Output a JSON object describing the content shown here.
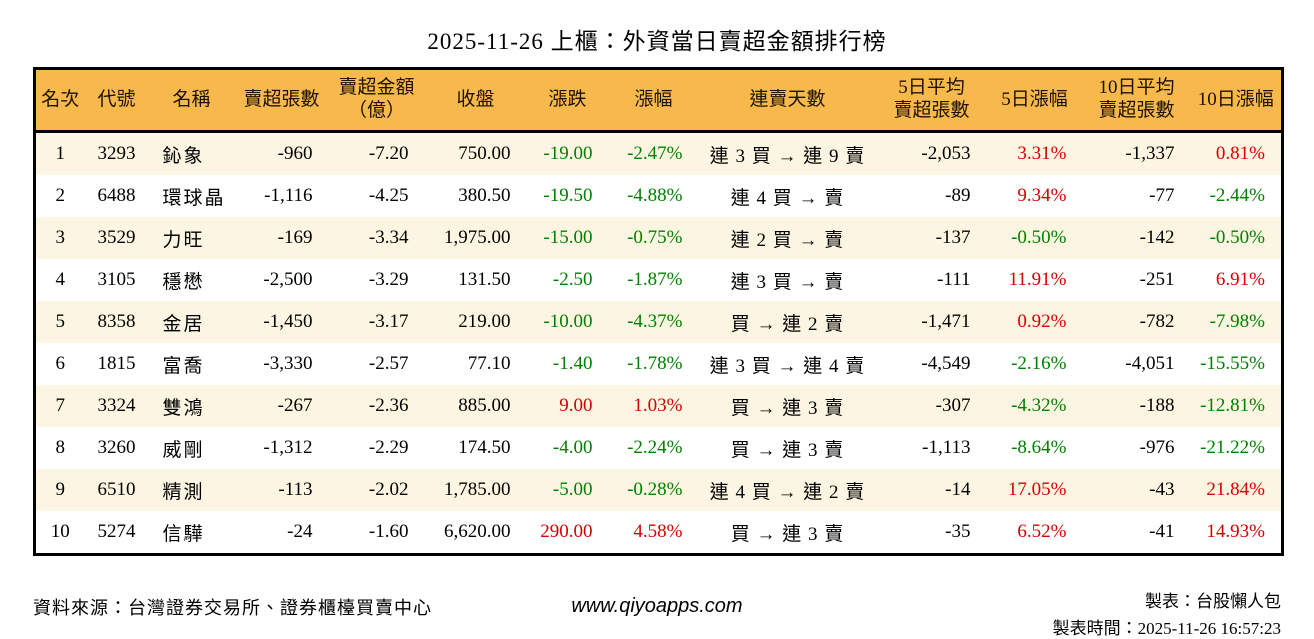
{
  "title": "2025-11-26 上櫃：外資當日賣超金額排行榜",
  "chart_data": {
    "type": "table",
    "title": "2025-11-26 上櫃：外資當日賣超金額排行榜",
    "columns": [
      "名次",
      "代號",
      "名稱",
      "賣超張數",
      "賣超金額\n（億）",
      "收盤",
      "漲跌",
      "漲幅",
      "連賣天數",
      "5日平均\n賣超張數",
      "5日漲幅",
      "10日平均\n賣超張數",
      "10日漲幅"
    ],
    "rows": [
      [
        "1",
        "3293",
        "鈊象",
        "-960",
        "-7.20",
        "750.00",
        "-19.00",
        "-2.47%",
        "連 3 買 → 連 9 賣",
        "-2,053",
        "3.31%",
        "-1,337",
        "0.81%"
      ],
      [
        "2",
        "6488",
        "環球晶",
        "-1,116",
        "-4.25",
        "380.50",
        "-19.50",
        "-4.88%",
        "連 4 買 → 賣",
        "-89",
        "9.34%",
        "-77",
        "-2.44%"
      ],
      [
        "3",
        "3529",
        "力旺",
        "-169",
        "-3.34",
        "1,975.00",
        "-15.00",
        "-0.75%",
        "連 2 買 → 賣",
        "-137",
        "-0.50%",
        "-142",
        "-0.50%"
      ],
      [
        "4",
        "3105",
        "穩懋",
        "-2,500",
        "-3.29",
        "131.50",
        "-2.50",
        "-1.87%",
        "連 3 買 → 賣",
        "-111",
        "11.91%",
        "-251",
        "6.91%"
      ],
      [
        "5",
        "8358",
        "金居",
        "-1,450",
        "-3.17",
        "219.00",
        "-10.00",
        "-4.37%",
        "買 → 連 2 賣",
        "-1,471",
        "0.92%",
        "-782",
        "-7.98%"
      ],
      [
        "6",
        "1815",
        "富喬",
        "-3,330",
        "-2.57",
        "77.10",
        "-1.40",
        "-1.78%",
        "連 3 買 → 連 4 賣",
        "-4,549",
        "-2.16%",
        "-4,051",
        "-15.55%"
      ],
      [
        "7",
        "3324",
        "雙鴻",
        "-267",
        "-2.36",
        "885.00",
        "9.00",
        "1.03%",
        "買 → 連 3 賣",
        "-307",
        "-4.32%",
        "-188",
        "-12.81%"
      ],
      [
        "8",
        "3260",
        "威剛",
        "-1,312",
        "-2.29",
        "174.50",
        "-4.00",
        "-2.24%",
        "買 → 連 3 賣",
        "-1,113",
        "-8.64%",
        "-976",
        "-21.22%"
      ],
      [
        "9",
        "6510",
        "精測",
        "-113",
        "-2.02",
        "1,785.00",
        "-5.00",
        "-0.28%",
        "連 4 買 → 連 2 賣",
        "-14",
        "17.05%",
        "-43",
        "21.84%"
      ],
      [
        "10",
        "5274",
        "信驊",
        "-24",
        "-1.60",
        "6,620.00",
        "290.00",
        "4.58%",
        "買 → 連 3 賣",
        "-35",
        "6.52%",
        "-41",
        "14.93%"
      ]
    ]
  },
  "footer": {
    "source": "資料來源：台灣證券交易所、證券櫃檯買賣中心",
    "website": "www.qiyoapps.com",
    "maker": "製表：台股懶人包",
    "generated_at": "製表時間：2025-11-26 16:57:23"
  },
  "colors": {
    "header-bg": "#f7b94c",
    "row-alt": "#fcf5e1",
    "up": "#d40000",
    "down": "#008000",
    "border": "#000000"
  }
}
